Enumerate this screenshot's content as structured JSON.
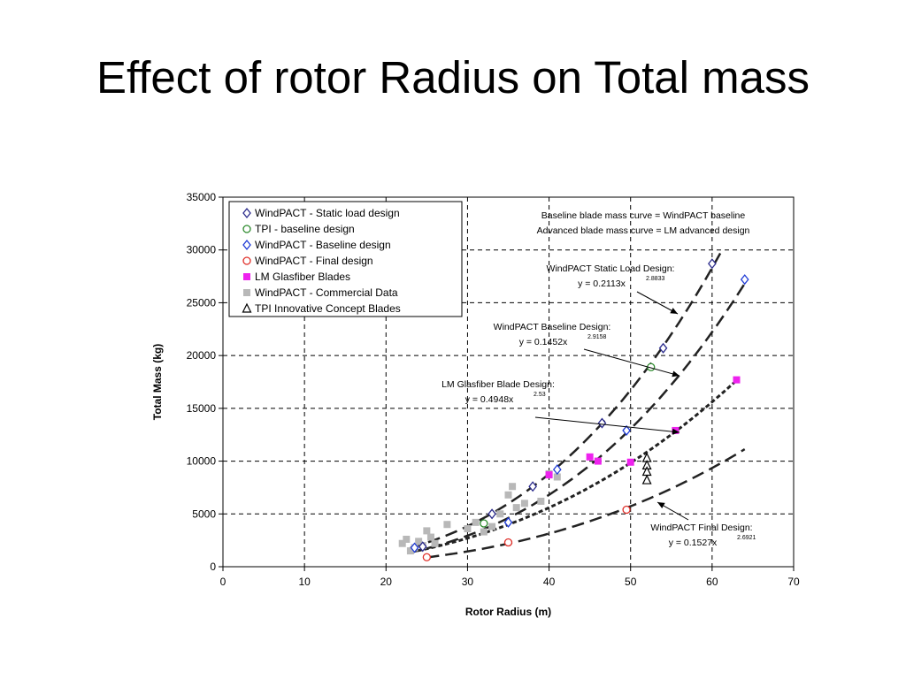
{
  "slide": {
    "title": "Effect of rotor Radius on Total mass"
  },
  "chart_data": {
    "type": "scatter",
    "xlabel": "Rotor Radius (m)",
    "ylabel": "Total Mass (kg)",
    "xlim": [
      0,
      70
    ],
    "ylim": [
      0,
      35000
    ],
    "xticks": [
      0,
      10,
      20,
      30,
      40,
      50,
      60,
      70
    ],
    "yticks": [
      0,
      5000,
      10000,
      15000,
      20000,
      25000,
      30000,
      35000
    ],
    "grid": "dashed",
    "legend_position": "top-left",
    "series": [
      {
        "name": "WindPACT - Static load design",
        "marker": "diamond-open",
        "color": "#2b2b8c",
        "points": [
          [
            24.5,
            1900
          ],
          [
            33,
            5000
          ],
          [
            38,
            7600
          ],
          [
            46.5,
            13600
          ],
          [
            54,
            20700
          ],
          [
            60,
            28700
          ]
        ]
      },
      {
        "name": "TPI - baseline design",
        "marker": "circle-open",
        "color": "#2e8b2e",
        "points": [
          [
            32,
            4100
          ],
          [
            52.5,
            18900
          ]
        ]
      },
      {
        "name": "WindPACT - Baseline design",
        "marker": "diamond-open",
        "color": "#1f3bd6",
        "points": [
          [
            23.5,
            1800
          ],
          [
            35,
            4200
          ],
          [
            41,
            9200
          ],
          [
            49.5,
            12900
          ],
          [
            64,
            27200
          ]
        ]
      },
      {
        "name": "WindPACT - Final design",
        "marker": "circle-open",
        "color": "#e0302a",
        "points": [
          [
            25,
            900
          ],
          [
            35,
            2300
          ],
          [
            49.5,
            5400
          ]
        ]
      },
      {
        "name": "LM Glasfiber Blades",
        "marker": "square-filled",
        "color": "#ee22ee",
        "points": [
          [
            40,
            8700
          ],
          [
            45,
            10400
          ],
          [
            46,
            10000
          ],
          [
            50,
            9900
          ],
          [
            55.5,
            12900
          ],
          [
            63,
            17700
          ]
        ]
      },
      {
        "name": "WindPACT - Commercial Data",
        "marker": "square-filled",
        "color": "#b8b8b8",
        "points": [
          [
            22,
            2200
          ],
          [
            22.5,
            2600
          ],
          [
            23,
            1500
          ],
          [
            23.5,
            1800
          ],
          [
            24,
            2400
          ],
          [
            24.5,
            2000
          ],
          [
            25,
            3400
          ],
          [
            25.5,
            2800
          ],
          [
            26,
            2200
          ],
          [
            27.5,
            4000
          ],
          [
            30,
            3600
          ],
          [
            31,
            4200
          ],
          [
            32,
            3300
          ],
          [
            33,
            3800
          ],
          [
            34,
            5000
          ],
          [
            35,
            6800
          ],
          [
            35.5,
            7600
          ],
          [
            36,
            5600
          ],
          [
            37,
            6000
          ],
          [
            39,
            6200
          ],
          [
            40,
            8800
          ],
          [
            41,
            8500
          ]
        ]
      },
      {
        "name": "TPI Innovative Concept Blades",
        "marker": "triangle-open",
        "color": "#000000",
        "points": [
          [
            52,
            10300
          ],
          [
            52,
            9600
          ],
          [
            52,
            9000
          ],
          [
            52,
            8200
          ]
        ]
      }
    ],
    "curves": [
      {
        "label": "WindPACT Static Load Design:",
        "equation": "y = 0.2113x",
        "exponent": "2.8833",
        "a": 0.2113,
        "b": 2.8833,
        "xrange": [
          23,
          61
        ],
        "dash": "long"
      },
      {
        "label": "WindPACT Baseline Design:",
        "equation": "y = 0.1452x",
        "exponent": "2.9158",
        "a": 0.1452,
        "b": 2.9158,
        "xrange": [
          23,
          64
        ],
        "dash": "long"
      },
      {
        "label": "LM Glasfiber Blade Design:",
        "equation": "y = 0.4948x",
        "exponent": "2.53",
        "a": 0.4948,
        "b": 2.53,
        "xrange": [
          23,
          63
        ],
        "dash": "short"
      },
      {
        "label": "WindPACT Final Design:",
        "equation": "y = 0.1527x",
        "exponent": "2.6921",
        "a": 0.1527,
        "b": 2.6921,
        "xrange": [
          25,
          64
        ],
        "dash": "long"
      }
    ],
    "notes": [
      "Baseline blade mass curve = WindPACT baseline",
      "Advanced blade mass curve = LM advanced design"
    ]
  }
}
